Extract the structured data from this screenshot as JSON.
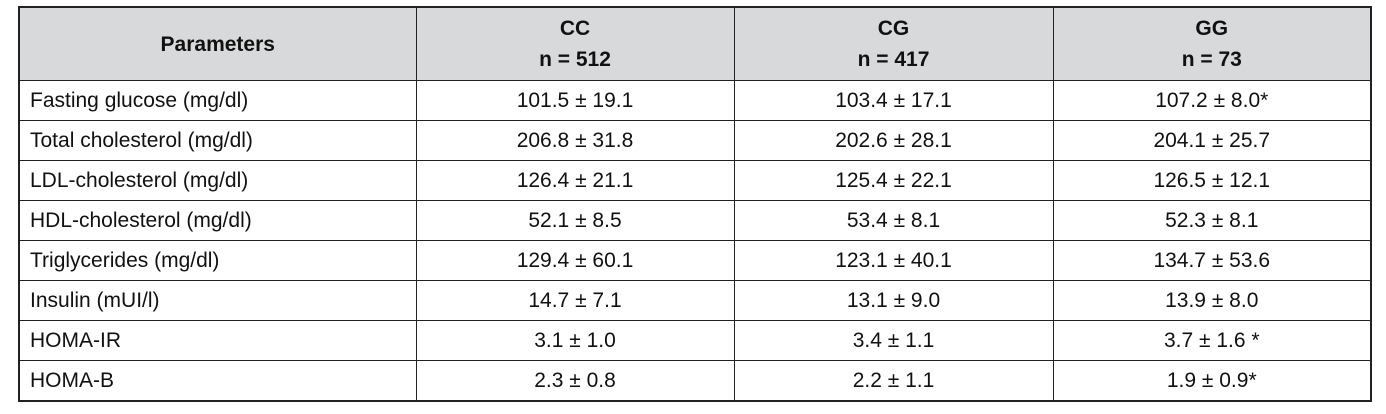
{
  "table": {
    "header": [
      "Parameters",
      [
        "CC",
        "n = 512"
      ],
      [
        "CG",
        "n = 417"
      ],
      [
        "GG",
        "n = 73"
      ]
    ],
    "rows": [
      [
        "Fasting glucose (mg/dl)",
        "101.5 ± 19.1",
        "103.4 ± 17.1",
        "107.2 ± 8.0*"
      ],
      [
        "Total cholesterol (mg/dl)",
        "206.8 ± 31.8",
        "202.6 ± 28.1",
        "204.1 ± 25.7"
      ],
      [
        "LDL-cholesterol (mg/dl)",
        "126.4 ± 21.1",
        "125.4 ± 22.1",
        "126.5 ± 12.1"
      ],
      [
        "HDL-cholesterol (mg/dl)",
        "52.1 ± 8.5",
        "53.4 ± 8.1",
        "52.3 ± 8.1"
      ],
      [
        "Triglycerides (mg/dl)",
        "129.4 ± 60.1",
        "123.1 ± 40.1",
        "134.7 ± 53.6"
      ],
      [
        "Insulin (mUI/l)",
        "14.7 ± 7.1",
        "13.1 ± 9.0",
        "13.9 ± 8.0"
      ],
      [
        "HOMA-IR",
        "3.1 ± 1.0",
        "3.4 ± 1.1",
        "3.7 ± 1.6 *"
      ],
      [
        "HOMA-B",
        "2.3 ± 0.8",
        "2.2 ± 1.1",
        "1.9 ± 0.9*"
      ]
    ]
  }
}
